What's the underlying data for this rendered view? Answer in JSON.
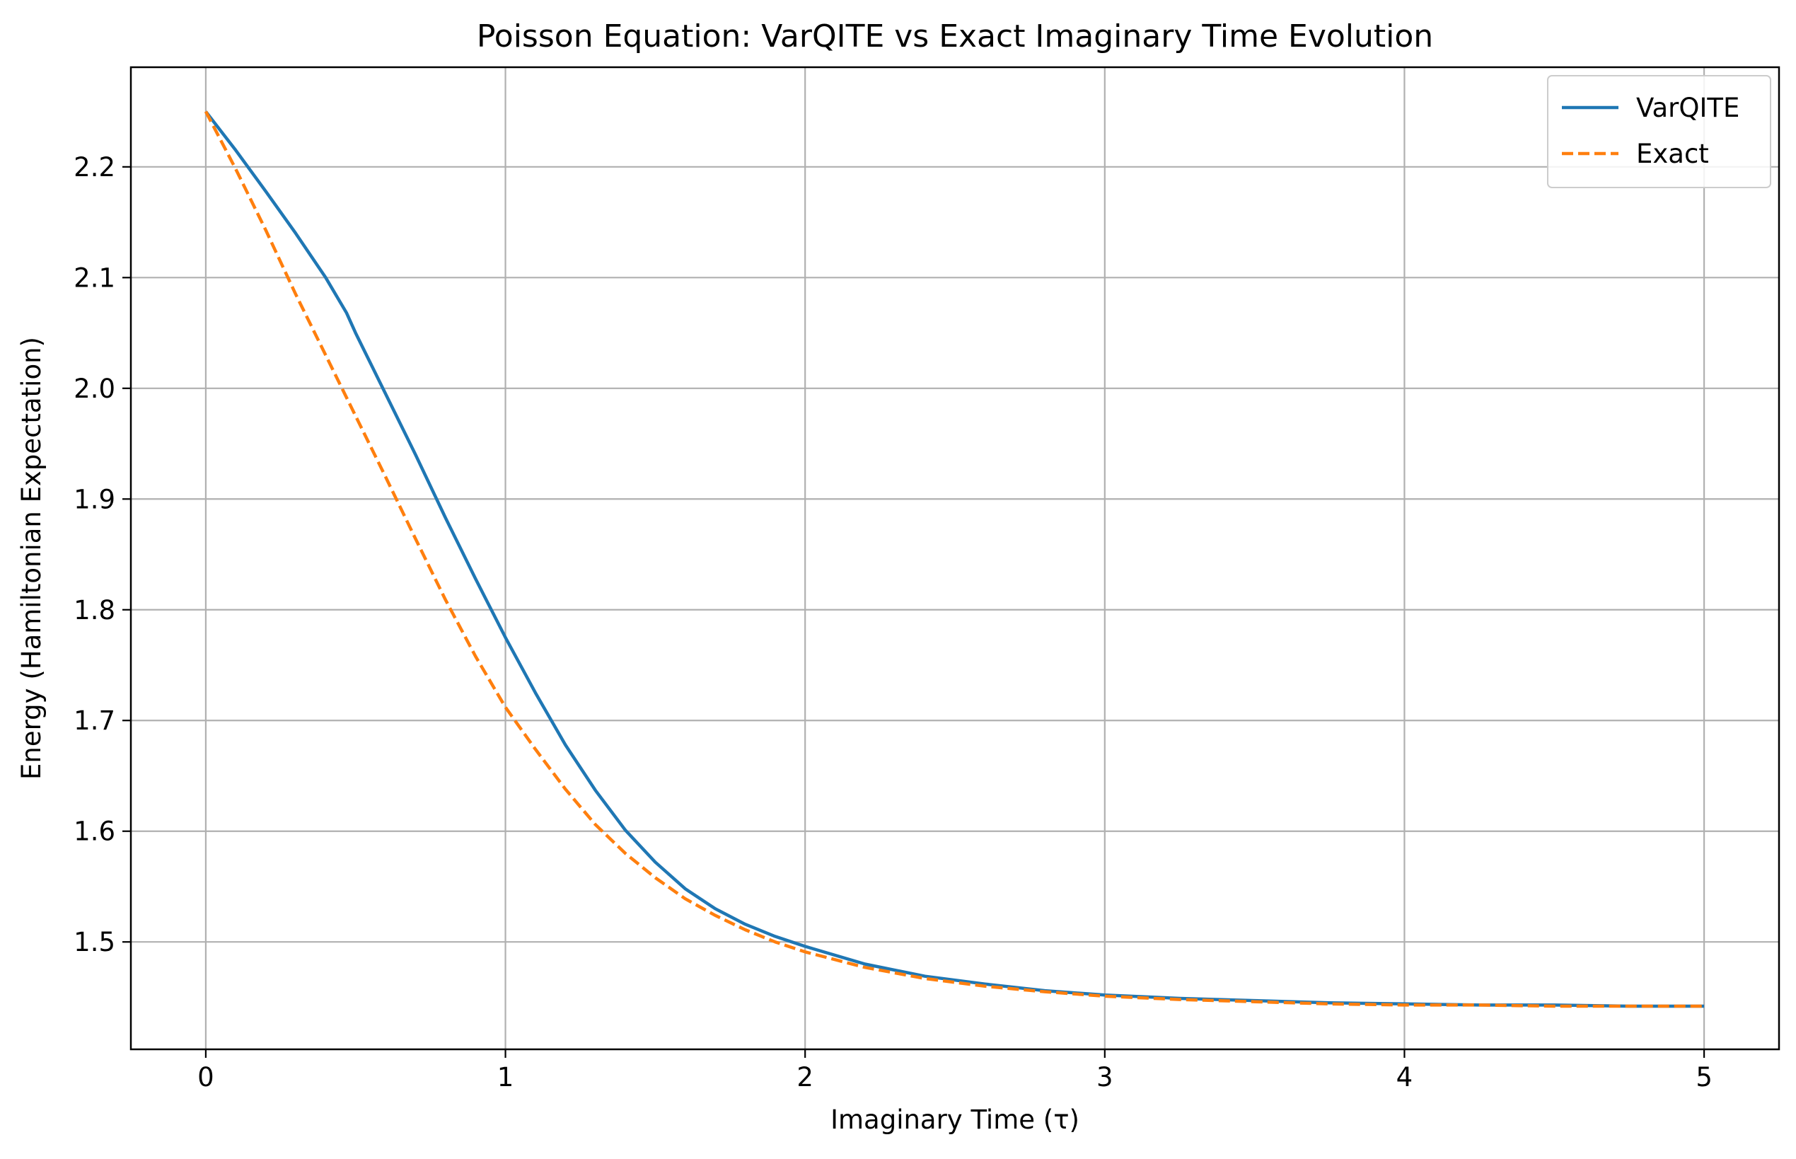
{
  "chart_data": {
    "type": "line",
    "title": "Poisson Equation: VarQITE vs Exact Imaginary Time Evolution",
    "xlabel": "Imaginary Time (τ)",
    "ylabel": "Energy (Hamiltonian Expectation)",
    "xlim": [
      -0.25,
      5.25
    ],
    "ylim": [
      1.403,
      2.29
    ],
    "xticks": [
      0,
      1,
      2,
      3,
      4,
      5
    ],
    "xtick_labels": [
      "0",
      "1",
      "2",
      "3",
      "4",
      "5"
    ],
    "yticks": [
      1.5,
      1.6,
      1.7,
      1.8,
      1.9,
      2.0,
      2.1,
      2.2
    ],
    "ytick_labels": [
      "1.5",
      "1.6",
      "1.7",
      "1.8",
      "1.9",
      "2.0",
      "2.1",
      "2.2"
    ],
    "grid": true,
    "legend_position": "top-right",
    "series": [
      {
        "name": "VarQITE",
        "color": "#1f77b4",
        "style": "solid",
        "x": [
          0,
          0.1,
          0.2,
          0.3,
          0.4,
          0.47,
          0.5,
          0.6,
          0.7,
          0.8,
          0.9,
          1.0,
          1.1,
          1.2,
          1.3,
          1.4,
          1.5,
          1.6,
          1.7,
          1.8,
          1.9,
          2.0,
          2.2,
          2.4,
          2.6,
          2.8,
          3.0,
          3.25,
          3.5,
          3.75,
          4.0,
          4.25,
          4.5,
          4.75,
          5.0
        ],
        "y": [
          2.25,
          2.215,
          2.178,
          2.14,
          2.1,
          2.068,
          2.05,
          1.995,
          1.94,
          1.883,
          1.828,
          1.775,
          1.725,
          1.678,
          1.637,
          1.601,
          1.572,
          1.548,
          1.53,
          1.516,
          1.505,
          1.496,
          1.48,
          1.469,
          1.462,
          1.456,
          1.452,
          1.449,
          1.447,
          1.445,
          1.444,
          1.443,
          1.443,
          1.442,
          1.442
        ]
      },
      {
        "name": "Exact",
        "color": "#ff7f0e",
        "style": "dashed",
        "x": [
          0,
          0.1,
          0.2,
          0.3,
          0.4,
          0.5,
          0.6,
          0.7,
          0.8,
          0.9,
          1.0,
          1.1,
          1.2,
          1.3,
          1.4,
          1.5,
          1.6,
          1.7,
          1.8,
          1.9,
          2.0,
          2.2,
          2.4,
          2.6,
          2.8,
          3.0,
          3.25,
          3.5,
          3.75,
          4.0,
          4.25,
          4.5,
          4.75,
          5.0
        ],
        "y": [
          2.25,
          2.198,
          2.143,
          2.085,
          2.03,
          1.975,
          1.92,
          1.864,
          1.809,
          1.758,
          1.712,
          1.674,
          1.638,
          1.606,
          1.58,
          1.558,
          1.539,
          1.524,
          1.511,
          1.5,
          1.491,
          1.477,
          1.467,
          1.46,
          1.455,
          1.451,
          1.448,
          1.446,
          1.444,
          1.443,
          1.443,
          1.442,
          1.442,
          1.442
        ]
      }
    ]
  }
}
